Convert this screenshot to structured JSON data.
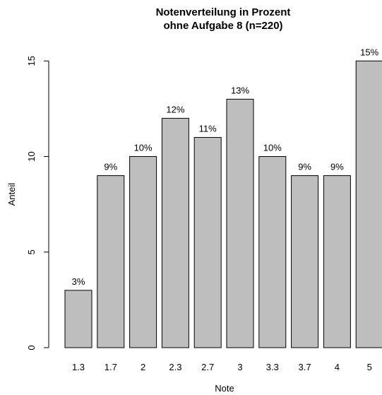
{
  "chart_data": {
    "type": "bar",
    "title": "Notenverteilung in Prozent",
    "subtitle": "ohne Aufgabe 8 (n=220)",
    "xlabel": "Note",
    "ylabel": "Anteil",
    "categories": [
      "1.3",
      "1.7",
      "2",
      "2.3",
      "2.7",
      "3",
      "3.3",
      "3.7",
      "4",
      "5"
    ],
    "values": [
      3,
      9,
      10,
      12,
      11,
      13,
      10,
      9,
      9,
      15
    ],
    "data_labels": [
      "3%",
      "9%",
      "10%",
      "12%",
      "11%",
      "13%",
      "10%",
      "9%",
      "9%",
      "15%"
    ],
    "yticks": [
      "0",
      "5",
      "10",
      "15"
    ],
    "ylim": [
      0,
      15
    ],
    "grid": false,
    "colors": {
      "bar_fill": "#bebebe",
      "bar_stroke": "#000000"
    }
  }
}
